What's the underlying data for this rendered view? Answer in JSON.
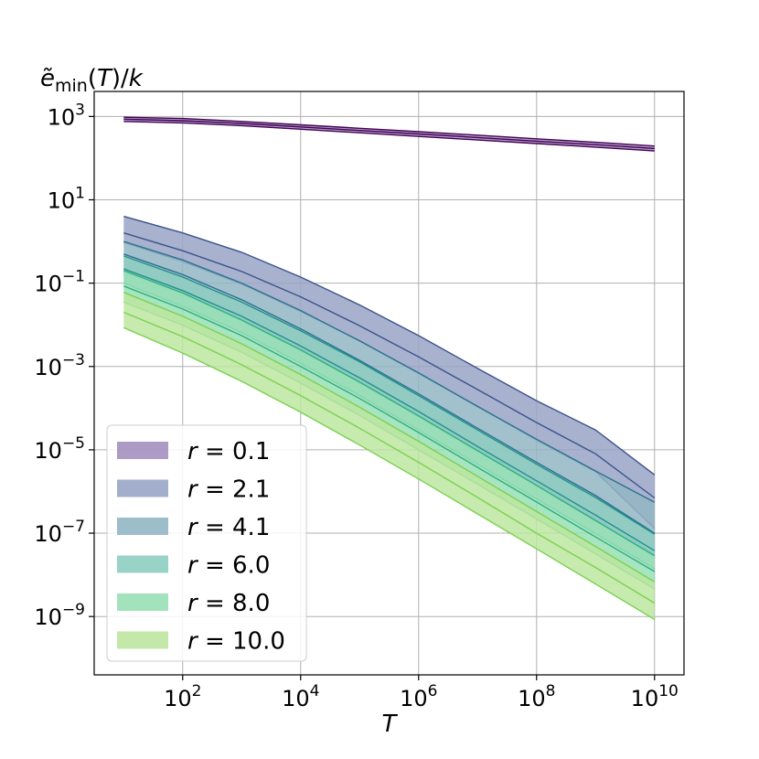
{
  "chart_data": {
    "type": "area",
    "title": "",
    "xlabel": "T",
    "ylabel": "ẽ_min(T)/k",
    "xscale": "log",
    "yscale": "log",
    "xlim": [
      3.16,
      31600000000
    ],
    "ylim": [
      3.98e-11,
      3980
    ],
    "x_ticks": [
      {
        "exp": 2,
        "label": "10",
        "sup": "2"
      },
      {
        "exp": 4,
        "label": "10",
        "sup": "4"
      },
      {
        "exp": 6,
        "label": "10",
        "sup": "6"
      },
      {
        "exp": 8,
        "label": "10",
        "sup": "8"
      },
      {
        "exp": 10,
        "label": "10",
        "sup": "10"
      }
    ],
    "y_ticks": [
      {
        "exp": 3,
        "label": "10",
        "sup": "3"
      },
      {
        "exp": 1,
        "label": "10",
        "sup": "1"
      },
      {
        "exp": -1,
        "label": "10",
        "sup": "−1"
      },
      {
        "exp": -3,
        "label": "10",
        "sup": "−3"
      },
      {
        "exp": -5,
        "label": "10",
        "sup": "−5"
      },
      {
        "exp": -7,
        "label": "10",
        "sup": "−7"
      },
      {
        "exp": -9,
        "label": "10",
        "sup": "−9"
      }
    ],
    "grid": true,
    "legend_position": "lower-left",
    "series": [
      {
        "name": "r = 0.1",
        "fill_color": "#a48fbf",
        "line_color": "#440154",
        "x": [
          10,
          100,
          1000,
          10000,
          100000,
          1000000,
          10000000,
          100000000,
          1000000000,
          10000000000
        ],
        "upper": [
          955,
          890,
          760,
          630,
          520,
          430,
          355,
          290,
          240,
          195
        ],
        "middle": [
          860,
          790,
          680,
          560,
          460,
          380,
          312,
          255,
          210,
          170
        ],
        "lower": [
          760,
          700,
          600,
          495,
          405,
          332,
          272,
          223,
          183,
          148
        ]
      },
      {
        "name": "r = 2.1",
        "fill_color": "#99a5c7",
        "line_color": "#3b528b",
        "x": [
          10,
          100,
          1000,
          10000,
          100000,
          1000000,
          10000000,
          100000000,
          1000000000,
          10000000000
        ],
        "upper": [
          4.0,
          1.6,
          0.55,
          0.14,
          0.03,
          0.0055,
          0.0009,
          0.00015,
          3e-05,
          2.5e-06
        ],
        "middle": [
          1.6,
          0.6,
          0.19,
          0.047,
          0.0095,
          0.0017,
          0.00028,
          4.5e-05,
          8e-06,
          7e-07
        ],
        "lower": [
          0.95,
          0.33,
          0.095,
          0.021,
          0.0041,
          0.00068,
          0.00011,
          1.7e-05,
          3e-06,
          1.3e-07
        ]
      },
      {
        "name": "r = 4.1",
        "fill_color": "#93b6c4",
        "line_color": "#2c728e",
        "x": [
          10,
          100,
          1000,
          10000,
          100000,
          1000000,
          10000000,
          100000000,
          1000000000,
          10000000000
        ],
        "upper": [
          1.0,
          0.36,
          0.1,
          0.022,
          0.0041,
          0.0007,
          0.00011,
          1.8e-05,
          3.1e-06,
          5.5e-07
        ],
        "middle": [
          0.5,
          0.16,
          0.04,
          0.008,
          0.0014,
          0.00022,
          3.3e-05,
          5e-06,
          8e-07,
          1e-07
        ],
        "lower": [
          0.18,
          0.056,
          0.013,
          0.0025,
          0.00042,
          6.3e-05,
          9.3e-06,
          1.4e-06,
          2.1e-07,
          2.6e-08
        ]
      },
      {
        "name": "r = 6.0",
        "fill_color": "#8ecdc0",
        "line_color": "#21918c",
        "x": [
          10,
          100,
          1000,
          10000,
          100000,
          1000000,
          10000000,
          100000000,
          1000000000,
          10000000000
        ],
        "upper": [
          0.45,
          0.14,
          0.035,
          0.0072,
          0.0013,
          0.0002,
          3e-05,
          4.5e-06,
          7.2e-07,
          9.5e-08
        ],
        "middle": [
          0.22,
          0.066,
          0.016,
          0.0031,
          0.00053,
          8.3e-05,
          1.2e-05,
          1.8e-06,
          2.7e-07,
          3.8e-08
        ],
        "lower": [
          0.1,
          0.028,
          0.0065,
          0.0012,
          0.0002,
          3e-05,
          4.5e-06,
          6.6e-07,
          9.8e-08,
          1.4e-08
        ]
      },
      {
        "name": "r = 8.0",
        "fill_color": "#98dfb5",
        "line_color": "#2bb07f",
        "x": [
          10,
          100,
          1000,
          10000,
          100000,
          1000000,
          10000000,
          100000000,
          1000000000,
          10000000000
        ],
        "upper": [
          0.2,
          0.058,
          0.013,
          0.0025,
          0.00042,
          6.5e-05,
          9.5e-06,
          1.4e-06,
          2e-07,
          2.9e-08
        ],
        "middle": [
          0.085,
          0.024,
          0.0055,
          0.001,
          0.00017,
          2.6e-05,
          3.8e-06,
          5.6e-07,
          8.1e-08,
          1.2e-08
        ],
        "lower": [
          0.035,
          0.0098,
          0.0022,
          0.0004,
          6.7e-05,
          1e-05,
          1.5e-06,
          2.2e-07,
          3.2e-08,
          4.6e-09
        ]
      },
      {
        "name": "r = 10.0",
        "fill_color": "#bde6a0",
        "line_color": "#7ad151",
        "x": [
          10,
          100,
          1000,
          10000,
          100000,
          1000000,
          10000000,
          100000000,
          1000000000,
          10000000000
        ],
        "upper": [
          0.06,
          0.016,
          0.0035,
          0.00064,
          0.000105,
          1.6e-05,
          2.3e-06,
          3.3e-07,
          4.8e-08,
          6.8e-09
        ],
        "middle": [
          0.02,
          0.0052,
          0.0011,
          0.0002,
          3.3e-05,
          5e-06,
          7.2e-07,
          1e-07,
          1.5e-08,
          2.1e-09
        ],
        "lower": [
          0.0085,
          0.0021,
          0.00044,
          8e-05,
          1.3e-05,
          2e-06,
          2.9e-07,
          4.2e-08,
          6e-09,
          8.5e-10
        ]
      }
    ]
  }
}
